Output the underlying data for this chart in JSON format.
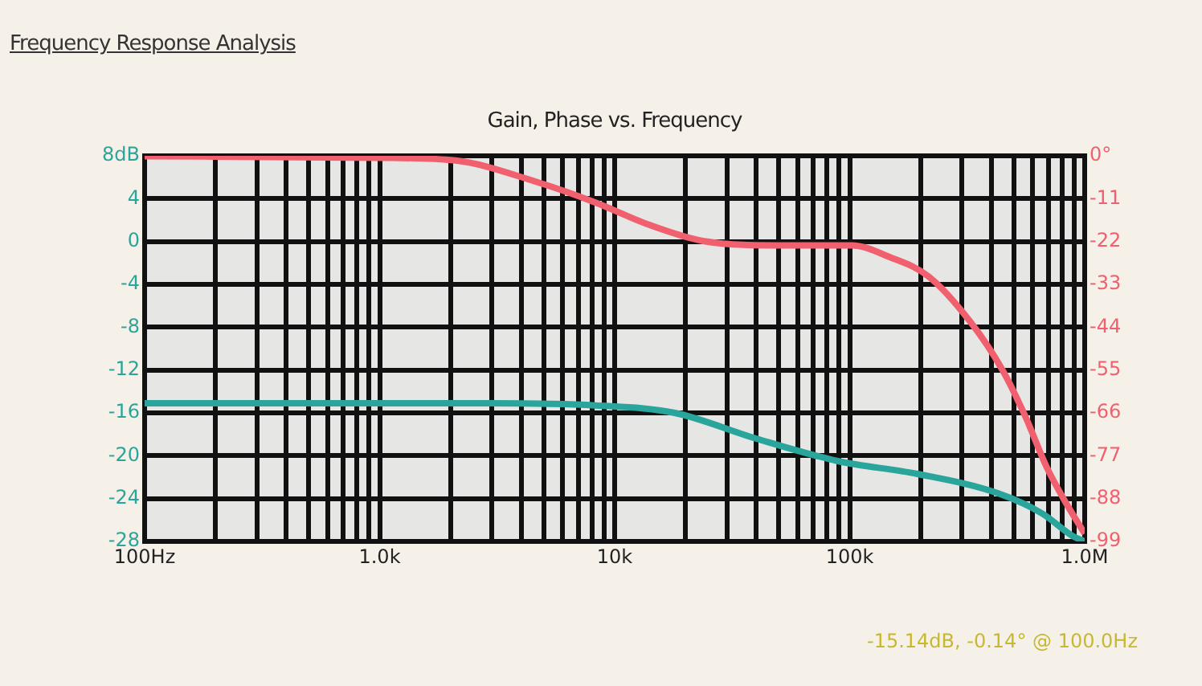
{
  "chart_data": {
    "type": "line",
    "title": "Frequency Response Analysis",
    "subtitle": "Gain, Phase vs. Frequency",
    "annotations": [
      "-15.14dB, -0.14° @ 100.0Hz"
    ],
    "log": "x",
    "grid": true,
    "xlim": [
      100,
      1000000
    ],
    "xticks": [
      {
        "value": 100,
        "label": "100Hz"
      },
      {
        "value": 200,
        "label": null
      },
      {
        "value": 300,
        "label": null
      },
      {
        "value": 400,
        "label": null
      },
      {
        "value": 500,
        "label": null
      },
      {
        "value": 600,
        "label": null
      },
      {
        "value": 700,
        "label": null
      },
      {
        "value": 800,
        "label": null
      },
      {
        "value": 900,
        "label": null
      },
      {
        "value": 1000,
        "label": "1.0k"
      },
      {
        "value": 2000,
        "label": null
      },
      {
        "value": 3000,
        "label": null
      },
      {
        "value": 4000,
        "label": null
      },
      {
        "value": 5000,
        "label": null
      },
      {
        "value": 6000,
        "label": null
      },
      {
        "value": 7000,
        "label": null
      },
      {
        "value": 8000,
        "label": null
      },
      {
        "value": 9000,
        "label": null
      },
      {
        "value": 10000,
        "label": "10k"
      },
      {
        "value": 20000,
        "label": null
      },
      {
        "value": 30000,
        "label": null
      },
      {
        "value": 40000,
        "label": null
      },
      {
        "value": 50000,
        "label": null
      },
      {
        "value": 60000,
        "label": null
      },
      {
        "value": 70000,
        "label": null
      },
      {
        "value": 80000,
        "label": null
      },
      {
        "value": 90000,
        "label": null
      },
      {
        "value": 100000,
        "label": "100k"
      },
      {
        "value": 200000,
        "label": null
      },
      {
        "value": 300000,
        "label": null
      },
      {
        "value": 400000,
        "label": null
      },
      {
        "value": 500000,
        "label": null
      },
      {
        "value": 600000,
        "label": null
      },
      {
        "value": 700000,
        "label": null
      },
      {
        "value": 800000,
        "label": null
      },
      {
        "value": 900000,
        "label": null
      },
      {
        "value": 1000000,
        "label": "1.0M"
      }
    ],
    "ylim": [
      -28,
      8
    ],
    "yticks": [
      {
        "value": 8,
        "label": "8dB"
      },
      4,
      0,
      -4,
      -8,
      -12,
      -16,
      -20,
      -24,
      -28
    ],
    "y2lim": [
      -99,
      0
    ],
    "y2ticks": [
      {
        "value": 0,
        "label": "0°"
      },
      -11,
      -22,
      -33,
      -44,
      -55,
      -66,
      -77,
      -88,
      -99
    ],
    "series": [
      {
        "color": "#2aa59c",
        "x": [
          100,
          1000,
          3000,
          8300,
          18000,
          40000,
          89000,
          194000,
          427000,
          660000,
          890000,
          1000000
        ],
        "values": [
          -15.1,
          -15.1,
          -15.1,
          -15.3,
          -16,
          -18.4,
          -20.5,
          -21.7,
          -23.5,
          -25.4,
          -27.5,
          -28
        ]
      },
      {
        "color": "#f0606e",
        "axis": "y2",
        "x": [
          100,
          1000,
          2100,
          4600,
          8300,
          14000,
          24000,
          52000,
          102000,
          148000,
          217000,
          325000,
          447000,
          560000,
          690000,
          830000,
          1000000
        ],
        "values": [
          -0.1,
          -0.5,
          -1.2,
          -6.6,
          -12,
          -17.7,
          -21.9,
          -23,
          -23,
          -26,
          -31,
          -42.5,
          -55,
          -67,
          -80,
          -89,
          -97
        ]
      }
    ]
  }
}
